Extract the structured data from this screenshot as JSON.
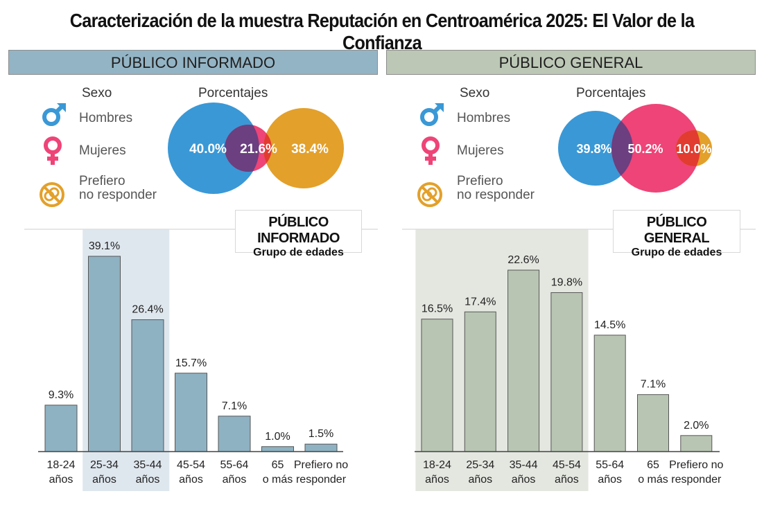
{
  "title": "Caracterización de la muestra Reputación en Centroamérica 2025:  El Valor de la Confianza",
  "legend": {
    "sexo_label": "Sexo",
    "porcentajes_label": "Porcentajes",
    "hombres": "Hombres",
    "mujeres": "Mujeres",
    "prefiero_line1": "Prefiero",
    "prefiero_line2": "no responder"
  },
  "colors": {
    "men": "#3a98d6",
    "women": "#ee4477",
    "prefer": "#e3a02a",
    "informed_header": "#93b4c5",
    "general_header": "#bcc7b6",
    "informed_bar": "#8fb2c2",
    "general_bar": "#b9c5b3"
  },
  "chart_data": [
    {
      "type": "venn",
      "panel": "PÚBLICO INFORMADO",
      "title": "Porcentajes",
      "labels": [
        "40.0%",
        "21.6%",
        "38.4%"
      ],
      "values": [
        40.0,
        21.6,
        38.4
      ]
    },
    {
      "type": "venn",
      "panel": "PÚBLICO GENERAL",
      "title": "Porcentajes",
      "labels": [
        "39.8%",
        "50.2%",
        "10.0%"
      ],
      "values": [
        39.8,
        50.2,
        10.0
      ]
    },
    {
      "type": "bar",
      "title": "PÚBLICO INFORMADO",
      "subtitle": "Grupo de edades",
      "categories": [
        [
          "18-24",
          "años"
        ],
        [
          "25-34",
          "años"
        ],
        [
          "35-44",
          "años"
        ],
        [
          "45-54",
          "años"
        ],
        [
          "55-64",
          "años"
        ],
        [
          "65",
          "o más"
        ],
        [
          "Prefiero no",
          "responder"
        ]
      ],
      "values": [
        9.3,
        39.1,
        26.4,
        15.7,
        7.1,
        1.0,
        1.5
      ],
      "labels": [
        "9.3%",
        "39.1%",
        "26.4%",
        "15.7%",
        "7.1%",
        "1.0%",
        "1.5%"
      ],
      "highlight": [
        1,
        2
      ],
      "ylim": [
        0,
        42
      ]
    },
    {
      "type": "bar",
      "title": "PÚBLICO GENERAL",
      "subtitle": "Grupo de edades",
      "categories": [
        [
          "18-24",
          "años"
        ],
        [
          "25-34",
          "años"
        ],
        [
          "35-44",
          "años"
        ],
        [
          "45-54",
          "años"
        ],
        [
          "55-64",
          "años"
        ],
        [
          "65",
          "o más"
        ],
        [
          "Prefiero no",
          "responder"
        ]
      ],
      "values": [
        16.5,
        17.4,
        22.6,
        19.8,
        14.5,
        7.1,
        2.0
      ],
      "labels": [
        "16.5%",
        "17.4%",
        "22.6%",
        "19.8%",
        "14.5%",
        "7.1%",
        "2.0%"
      ],
      "highlight": [
        0,
        1,
        2,
        3
      ],
      "ylim": [
        0,
        42
      ]
    }
  ]
}
